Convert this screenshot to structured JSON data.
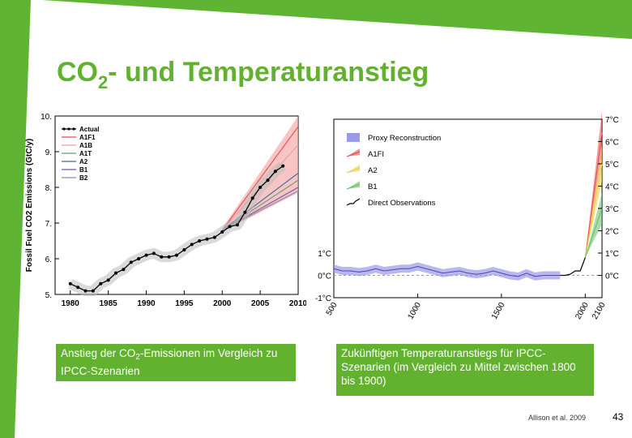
{
  "slide": {
    "title_main": "CO",
    "title_sub": "2",
    "title_rest": "- und Temperaturanstieg",
    "accent_color": "#62b22f",
    "page_number": "43",
    "citation": "Allison et al. 2009",
    "caption_left_pre": "Anstieg der CO",
    "caption_left_sub": "2",
    "caption_left_post": "-Emissionen im Vergleich zu IPCC-Szenarien",
    "caption_right": "Zukünftigen Temperaturanstiegs für IPCC-Szenarien (im Vergleich zu Mittel zwischen 1800 bis 1900)"
  },
  "chart_data": [
    {
      "type": "line",
      "ylabel": "Fossil Fuel CO2 Emissions (GtC/y)",
      "xlim": [
        1978,
        2010
      ],
      "ylim": [
        5,
        10
      ],
      "yticks": [
        "5.",
        "6.",
        "7.",
        "8.",
        "9.",
        "10."
      ],
      "xticks": [
        "1980",
        "1985",
        "1990",
        "1995",
        "2000",
        "2005",
        "2010"
      ],
      "legend": [
        "Actual",
        "A1F1",
        "A1B",
        "A1T",
        "A2",
        "B1",
        "B2"
      ],
      "legend_position": "top-left",
      "series_colors": [
        "#000000",
        "#e84a4a",
        "#e8a0a0",
        "#6a9a6a",
        "#3a6aa0",
        "#6a5ab0",
        "#8a8aa0"
      ],
      "actual": {
        "x": [
          1980,
          1981,
          1982,
          1983,
          1984,
          1985,
          1986,
          1987,
          1988,
          1989,
          1990,
          1991,
          1992,
          1993,
          1994,
          1995,
          1996,
          1997,
          1998,
          1999,
          2000,
          2001,
          2002,
          2003,
          2004,
          2005,
          2006,
          2007,
          2008
        ],
        "y": [
          5.3,
          5.2,
          5.1,
          5.1,
          5.3,
          5.4,
          5.6,
          5.7,
          5.9,
          6.0,
          6.1,
          6.15,
          6.05,
          6.05,
          6.1,
          6.25,
          6.4,
          6.5,
          6.55,
          6.6,
          6.75,
          6.9,
          6.95,
          7.3,
          7.7,
          8.0,
          8.2,
          8.45,
          8.6
        ]
      },
      "scenarios": {
        "x": [
          2000,
          2010
        ],
        "A1F1": [
          6.8,
          9.7
        ],
        "A1B": [
          6.8,
          9.2
        ],
        "A1T": [
          6.8,
          8.2
        ],
        "A2": [
          6.8,
          8.4
        ],
        "B1": [
          6.8,
          8.0
        ],
        "B2": [
          6.8,
          7.9
        ],
        "band_upper": [
          6.85,
          10.0
        ],
        "band_lower": [
          6.75,
          7.85
        ]
      }
    },
    {
      "type": "line",
      "xlim": [
        500,
        2100
      ],
      "ylim": [
        -1,
        7
      ],
      "xticks": [
        "500",
        "1000",
        "1500",
        "2000",
        "2100"
      ],
      "yticks_left": [
        "-1°C",
        "0°C",
        "1°C"
      ],
      "yticks_right": [
        "0°C",
        "1°C",
        "2°C",
        "3°C",
        "4°C",
        "5°C",
        "6°C",
        "7°C"
      ],
      "legend": [
        "Proxy Reconstruction",
        "A1FI",
        "A2",
        "B1",
        "Direct Observations"
      ],
      "legend_position": "top-left",
      "series_colors": [
        "#7070d0",
        "#e84a4a",
        "#e8d040",
        "#60c060",
        "#000000"
      ],
      "proxy": {
        "x": [
          500,
          550,
          600,
          650,
          700,
          750,
          800,
          850,
          900,
          950,
          1000,
          1050,
          1100,
          1150,
          1200,
          1250,
          1300,
          1350,
          1400,
          1450,
          1500,
          1550,
          1600,
          1650,
          1700,
          1750,
          1800,
          1850
        ],
        "y": [
          0.3,
          0.2,
          0.2,
          0.15,
          0.2,
          0.3,
          0.2,
          0.25,
          0.3,
          0.3,
          0.4,
          0.3,
          0.2,
          0.1,
          0.15,
          0.2,
          0.1,
          0.05,
          0.1,
          0.2,
          0.1,
          0.0,
          -0.05,
          0.1,
          -0.05,
          0.0,
          0.0,
          0.0
        ]
      },
      "observations": {
        "x": [
          1850,
          1880,
          1910,
          1940,
          1970,
          2000
        ],
        "y": [
          0.0,
          0.0,
          0.05,
          0.2,
          0.2,
          0.8
        ]
      },
      "scenarios": {
        "x": [
          2000,
          2100
        ],
        "A1FI": [
          0.8,
          6.4
        ],
        "A2": [
          0.8,
          5.0
        ],
        "B1": [
          0.8,
          3.0
        ]
      }
    }
  ]
}
